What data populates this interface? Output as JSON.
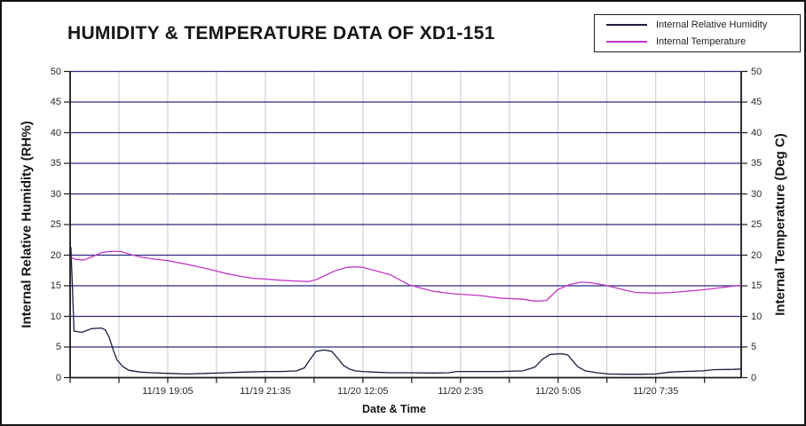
{
  "chart_data": {
    "type": "line",
    "title": "HUMIDITY & TEMPERATURE DATA OF XD1-151",
    "xlabel": "Date & Time",
    "ylabel_left": "Internal Relative Humidity (RH%)",
    "ylabel_right": "Internal Temperature (Deg C)",
    "ylim": [
      0,
      50
    ],
    "y_tick_step": 5,
    "y_tick_values": [
      0,
      5,
      10,
      15,
      20,
      25,
      30,
      35,
      40,
      45,
      50
    ],
    "x_span_hours": 17.19,
    "x_start_time": "11/19 16:35",
    "x_minor_tick_hours": 1.25,
    "x_ticks": [
      {
        "hours": 2.5,
        "label": "11/19 19:05"
      },
      {
        "hours": 5.0,
        "label": "11/19 21:35"
      },
      {
        "hours": 7.5,
        "label": "11/20 12:05"
      },
      {
        "hours": 10.0,
        "label": "11/20 2:35"
      },
      {
        "hours": 12.5,
        "label": "11/20 5:05"
      },
      {
        "hours": 15.0,
        "label": "11/20 7:35"
      }
    ],
    "grid": {
      "horizontal_color": "#2b2b7e",
      "vertical_color": "#c7c7d8",
      "axis_color": "#1a1a1a"
    },
    "legend_position": "top-right",
    "series": [
      {
        "name": "Internal Relative Humidity",
        "color": "#1c1c3e",
        "axis": "left",
        "unit": "RH%",
        "points": [
          [
            0.02,
            21.3
          ],
          [
            0.1,
            7.6
          ],
          [
            0.3,
            7.4
          ],
          [
            0.55,
            8.0
          ],
          [
            0.8,
            8.1
          ],
          [
            0.9,
            7.8
          ],
          [
            1.0,
            6.6
          ],
          [
            1.1,
            4.6
          ],
          [
            1.2,
            2.9
          ],
          [
            1.35,
            1.8
          ],
          [
            1.5,
            1.2
          ],
          [
            1.8,
            0.9
          ],
          [
            2.1,
            0.8
          ],
          [
            2.5,
            0.7
          ],
          [
            3.0,
            0.6
          ],
          [
            3.5,
            0.7
          ],
          [
            4.0,
            0.8
          ],
          [
            4.4,
            0.9
          ],
          [
            5.0,
            1.0
          ],
          [
            5.4,
            1.0
          ],
          [
            5.8,
            1.1
          ],
          [
            6.0,
            1.6
          ],
          [
            6.15,
            3.0
          ],
          [
            6.3,
            4.3
          ],
          [
            6.5,
            4.5
          ],
          [
            6.7,
            4.3
          ],
          [
            6.85,
            3.2
          ],
          [
            7.0,
            2.0
          ],
          [
            7.15,
            1.4
          ],
          [
            7.3,
            1.1
          ],
          [
            7.5,
            1.0
          ],
          [
            7.8,
            0.9
          ],
          [
            8.2,
            0.8
          ],
          [
            8.7,
            0.8
          ],
          [
            9.3,
            0.75
          ],
          [
            9.7,
            0.8
          ],
          [
            9.9,
            1.0
          ],
          [
            10.5,
            1.0
          ],
          [
            11.0,
            1.0
          ],
          [
            11.6,
            1.1
          ],
          [
            11.9,
            1.7
          ],
          [
            12.1,
            3.0
          ],
          [
            12.3,
            3.8
          ],
          [
            12.6,
            3.9
          ],
          [
            12.75,
            3.7
          ],
          [
            13.0,
            1.8
          ],
          [
            13.2,
            1.1
          ],
          [
            13.5,
            0.8
          ],
          [
            13.8,
            0.6
          ],
          [
            14.2,
            0.55
          ],
          [
            14.6,
            0.55
          ],
          [
            15.0,
            0.6
          ],
          [
            15.35,
            0.9
          ],
          [
            15.7,
            1.0
          ],
          [
            16.2,
            1.1
          ],
          [
            16.5,
            1.3
          ],
          [
            17.0,
            1.35
          ],
          [
            17.19,
            1.4
          ]
        ]
      },
      {
        "name": "Internal Temperature",
        "color": "#c437c4",
        "axis": "right",
        "unit": "Deg C",
        "points": [
          [
            0.02,
            19.6
          ],
          [
            0.15,
            19.3
          ],
          [
            0.35,
            19.2
          ],
          [
            0.55,
            19.7
          ],
          [
            0.8,
            20.4
          ],
          [
            1.0,
            20.6
          ],
          [
            1.3,
            20.6
          ],
          [
            1.5,
            20.2
          ],
          [
            1.8,
            19.7
          ],
          [
            2.1,
            19.4
          ],
          [
            2.5,
            19.1
          ],
          [
            3.0,
            18.5
          ],
          [
            3.5,
            17.8
          ],
          [
            4.0,
            17.0
          ],
          [
            4.4,
            16.5
          ],
          [
            4.7,
            16.2
          ],
          [
            5.0,
            16.1
          ],
          [
            5.4,
            15.9
          ],
          [
            5.7,
            15.8
          ],
          [
            6.1,
            15.7
          ],
          [
            6.3,
            16.0
          ],
          [
            6.5,
            16.6
          ],
          [
            6.8,
            17.5
          ],
          [
            7.1,
            18.0
          ],
          [
            7.3,
            18.1
          ],
          [
            7.5,
            18.0
          ],
          [
            7.8,
            17.5
          ],
          [
            8.2,
            16.8
          ],
          [
            8.7,
            15.1
          ],
          [
            9.3,
            14.1
          ],
          [
            9.8,
            13.7
          ],
          [
            10.5,
            13.4
          ],
          [
            11.0,
            13.0
          ],
          [
            11.6,
            12.8
          ],
          [
            11.9,
            12.5
          ],
          [
            12.2,
            12.6
          ],
          [
            12.5,
            14.4
          ],
          [
            12.8,
            15.2
          ],
          [
            13.1,
            15.6
          ],
          [
            13.35,
            15.5
          ],
          [
            13.7,
            15.1
          ],
          [
            14.2,
            14.3
          ],
          [
            14.5,
            13.9
          ],
          [
            15.0,
            13.8
          ],
          [
            15.4,
            13.9
          ],
          [
            15.8,
            14.1
          ],
          [
            16.3,
            14.4
          ],
          [
            16.8,
            14.8
          ],
          [
            17.19,
            15.1
          ]
        ]
      }
    ]
  }
}
